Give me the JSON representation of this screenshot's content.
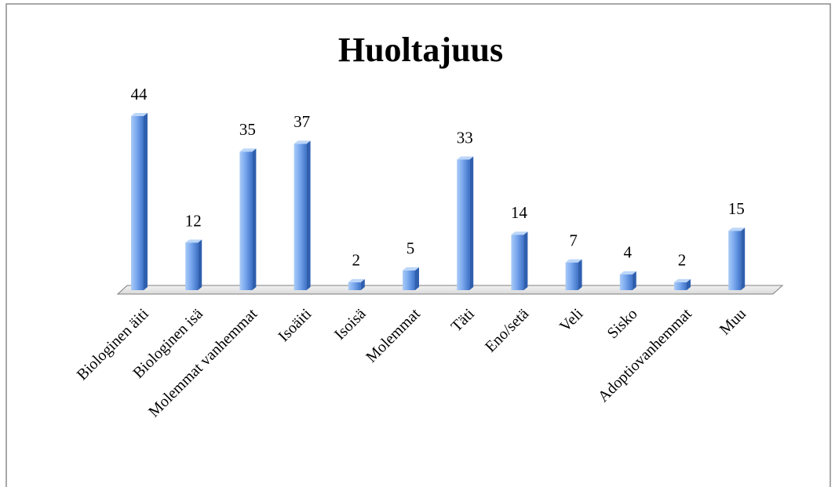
{
  "chart_data": {
    "type": "bar",
    "title": "Huoltajuus",
    "categories": [
      "Biologinen äiti",
      "Biologinen isä",
      "Molemmat vanhemmat",
      "Isoäiti",
      "Isoisä",
      "Molemmat",
      "Täti",
      "Eno/setä",
      "Veli",
      "Sisko",
      "Adoptiovanhemmat",
      "Muu"
    ],
    "values": [
      44,
      12,
      35,
      37,
      2,
      5,
      33,
      14,
      7,
      4,
      2,
      15
    ],
    "color": "#4f86d9"
  }
}
